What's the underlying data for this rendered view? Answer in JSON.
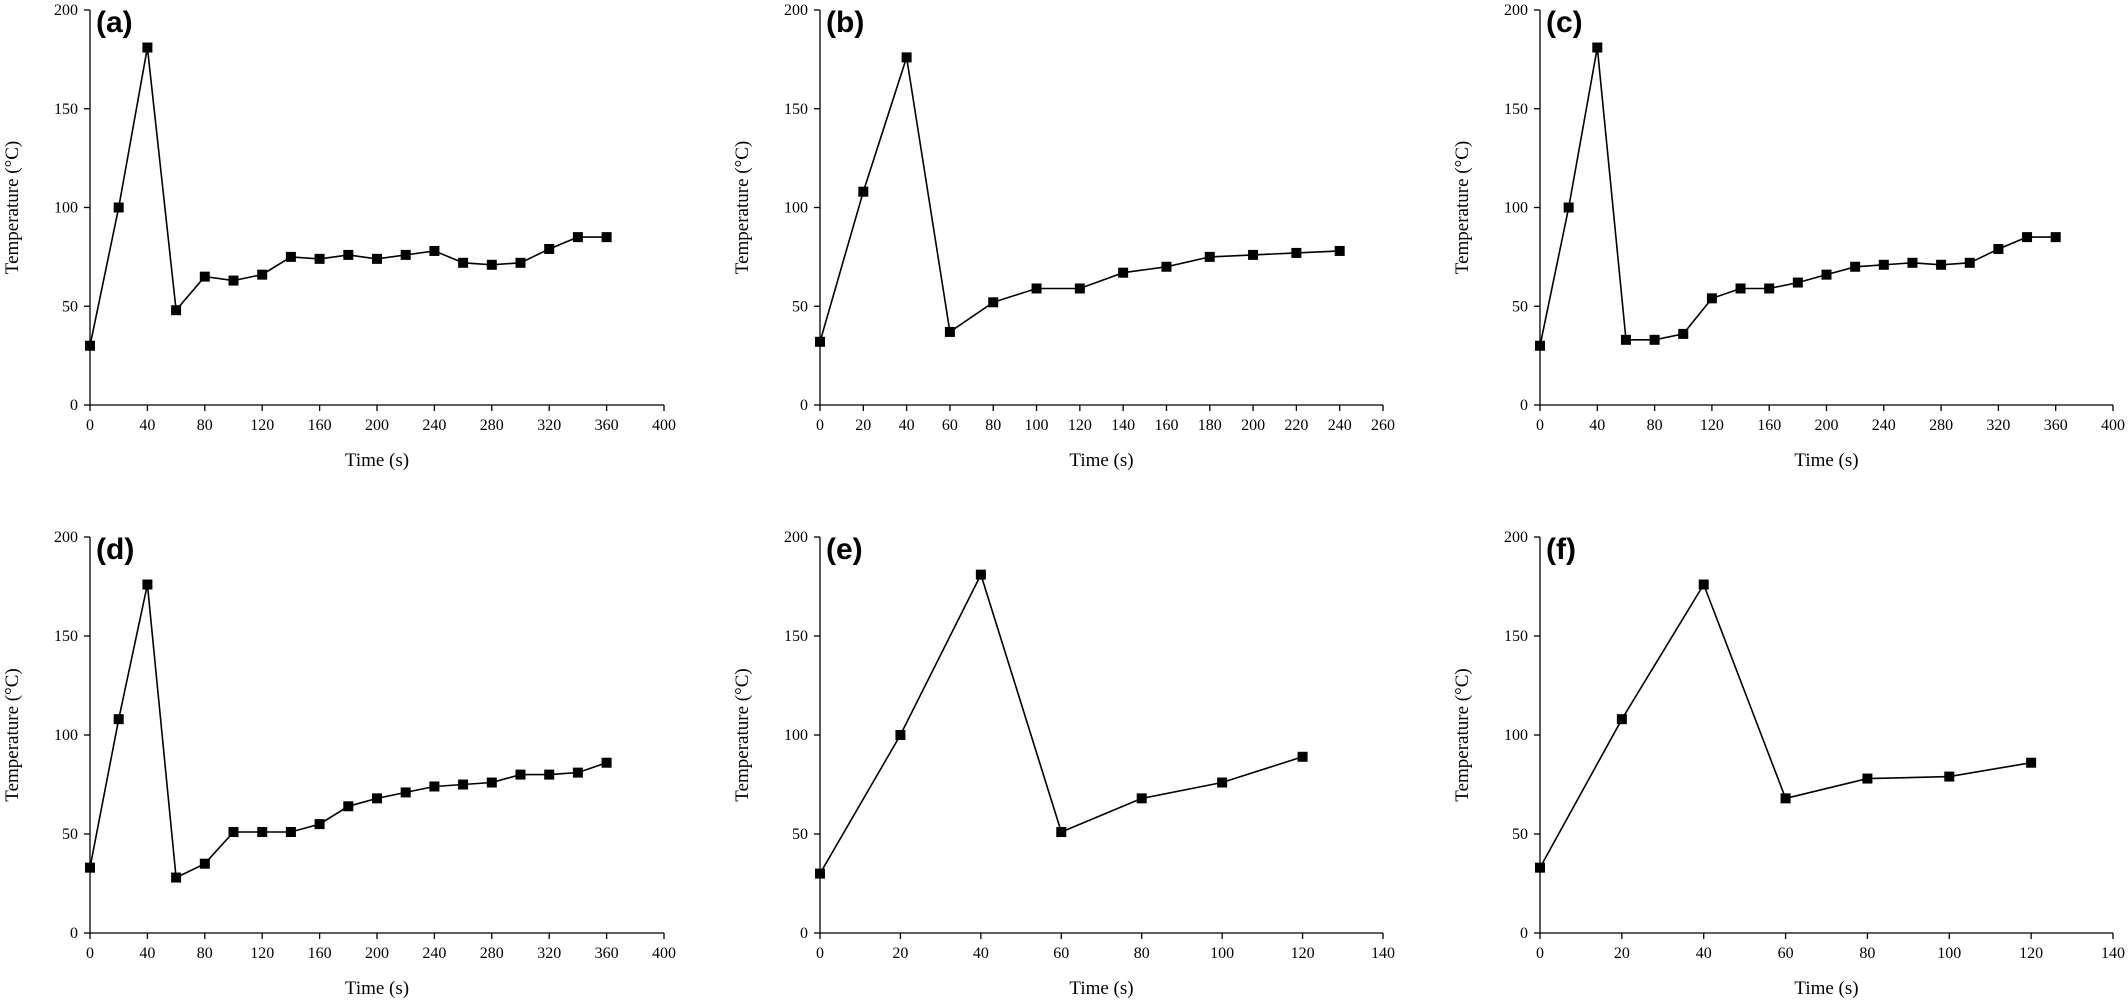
{
  "chart_data": [
    {
      "type": "line",
      "panel_label": "(a)",
      "xlabel": "Time (s)",
      "ylabel": "Temperature (°C)",
      "xlim": [
        0,
        400
      ],
      "ylim": [
        0,
        200
      ],
      "xticks": [
        0,
        40,
        80,
        120,
        160,
        200,
        240,
        280,
        320,
        360,
        400
      ],
      "yticks": [
        0,
        50,
        100,
        150,
        200
      ],
      "marker": "square",
      "grid": false,
      "series": [
        {
          "x": [
            0,
            20,
            40,
            60,
            80,
            100,
            120,
            140,
            160,
            180,
            200,
            220,
            240,
            260,
            280,
            300,
            320,
            340,
            360
          ],
          "y": [
            30,
            100,
            181,
            48,
            65,
            63,
            66,
            75,
            74,
            76,
            74,
            76,
            78,
            72,
            71,
            72,
            79,
            85,
            85
          ]
        }
      ]
    },
    {
      "type": "line",
      "panel_label": "(b)",
      "xlabel": "Time (s)",
      "ylabel": "Temperature (°C)",
      "xlim": [
        0,
        260
      ],
      "ylim": [
        0,
        200
      ],
      "xticks": [
        0,
        20,
        40,
        60,
        80,
        100,
        120,
        140,
        160,
        180,
        200,
        220,
        240,
        260
      ],
      "yticks": [
        0,
        50,
        100,
        150,
        200
      ],
      "marker": "square",
      "grid": false,
      "series": [
        {
          "x": [
            0,
            20,
            40,
            60,
            80,
            100,
            120,
            140,
            160,
            180,
            200,
            220,
            240
          ],
          "y": [
            32,
            108,
            176,
            37,
            52,
            59,
            59,
            67,
            70,
            75,
            76,
            77,
            78
          ]
        }
      ]
    },
    {
      "type": "line",
      "panel_label": "(c)",
      "xlabel": "Time (s)",
      "ylabel": "Temperature (°C)",
      "xlim": [
        0,
        400
      ],
      "ylim": [
        0,
        200
      ],
      "xticks": [
        0,
        40,
        80,
        120,
        160,
        200,
        240,
        280,
        320,
        360,
        400
      ],
      "yticks": [
        0,
        50,
        100,
        150,
        200
      ],
      "marker": "square",
      "grid": false,
      "series": [
        {
          "x": [
            0,
            20,
            40,
            60,
            80,
            100,
            120,
            140,
            160,
            180,
            200,
            220,
            240,
            260,
            280,
            300,
            320,
            340,
            360
          ],
          "y": [
            30,
            100,
            181,
            33,
            33,
            36,
            54,
            59,
            59,
            62,
            66,
            70,
            71,
            72,
            71,
            72,
            79,
            85,
            85
          ]
        }
      ]
    },
    {
      "type": "line",
      "panel_label": "(d)",
      "xlabel": "Time (s)",
      "ylabel": "Temperature (°C)",
      "xlim": [
        0,
        400
      ],
      "ylim": [
        0,
        200
      ],
      "xticks": [
        0,
        40,
        80,
        120,
        160,
        200,
        240,
        280,
        320,
        360,
        400
      ],
      "yticks": [
        0,
        50,
        100,
        150,
        200
      ],
      "marker": "square",
      "grid": false,
      "series": [
        {
          "x": [
            0,
            20,
            40,
            60,
            80,
            100,
            120,
            140,
            160,
            180,
            200,
            220,
            240,
            260,
            280,
            300,
            320,
            340,
            360
          ],
          "y": [
            33,
            108,
            176,
            28,
            35,
            51,
            51,
            51,
            55,
            64,
            68,
            71,
            74,
            75,
            76,
            80,
            80,
            81,
            86
          ]
        }
      ]
    },
    {
      "type": "line",
      "panel_label": "(e)",
      "xlabel": "Time (s)",
      "ylabel": "Temperature (°C)",
      "xlim": [
        0,
        140
      ],
      "ylim": [
        0,
        200
      ],
      "xticks": [
        0,
        20,
        40,
        60,
        80,
        100,
        120,
        140
      ],
      "yticks": [
        0,
        50,
        100,
        150,
        200
      ],
      "marker": "square",
      "grid": false,
      "series": [
        {
          "x": [
            0,
            20,
            40,
            60,
            80,
            100,
            120
          ],
          "y": [
            30,
            100,
            181,
            51,
            68,
            76,
            89
          ]
        }
      ]
    },
    {
      "type": "line",
      "panel_label": "(f)",
      "xlabel": "Time (s)",
      "ylabel": "Temperature (°C)",
      "xlim": [
        0,
        140
      ],
      "ylim": [
        0,
        200
      ],
      "xticks": [
        0,
        20,
        40,
        60,
        80,
        100,
        120,
        140
      ],
      "yticks": [
        0,
        50,
        100,
        150,
        200
      ],
      "marker": "square",
      "grid": false,
      "series": [
        {
          "x": [
            0,
            20,
            40,
            60,
            80,
            100,
            120
          ],
          "y": [
            33,
            108,
            176,
            68,
            78,
            79,
            86
          ]
        }
      ]
    }
  ]
}
